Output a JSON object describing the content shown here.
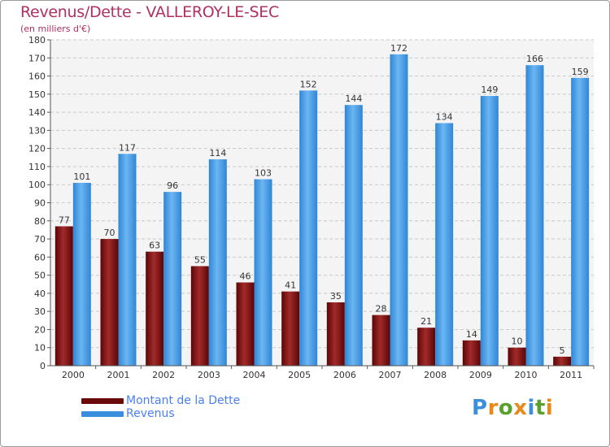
{
  "header": {
    "title": "Revenus/Dette - VALLEROY-LE-SEC",
    "subtitle": "(en milliers d'€)"
  },
  "legend": {
    "items": [
      {
        "label": "Montant de la Dette",
        "color": "#6b0a0a"
      },
      {
        "label": "Revenus",
        "color": "#3a8fdc"
      }
    ]
  },
  "logo": {
    "text": "Proxiti",
    "letters": [
      "P",
      "r",
      "o",
      "x",
      "i",
      "t",
      "i"
    ],
    "colors": [
      "#3a8fdc",
      "#e8891b",
      "#5aa02c",
      "#e8891b",
      "#3a8fdc",
      "#5aa02c",
      "#e8891b"
    ]
  },
  "chart_data": {
    "type": "bar",
    "title": "Revenus/Dette - VALLEROY-LE-SEC",
    "subtitle": "(en milliers d'€)",
    "xlabel": "",
    "ylabel": "",
    "ylim": [
      0,
      180
    ],
    "ytick_step": 10,
    "grid": true,
    "categories": [
      "2000",
      "2001",
      "2002",
      "2003",
      "2004",
      "2005",
      "2006",
      "2007",
      "2008",
      "2009",
      "2010",
      "2011"
    ],
    "series": [
      {
        "name": "Montant de la Dette",
        "color": "#6b0a0a",
        "values": [
          77,
          70,
          63,
          55,
          46,
          41,
          35,
          28,
          21,
          14,
          10,
          5
        ]
      },
      {
        "name": "Revenus",
        "color": "#3a8fdc",
        "values": [
          101,
          117,
          96,
          114,
          103,
          152,
          144,
          172,
          134,
          149,
          166,
          159
        ]
      }
    ]
  }
}
